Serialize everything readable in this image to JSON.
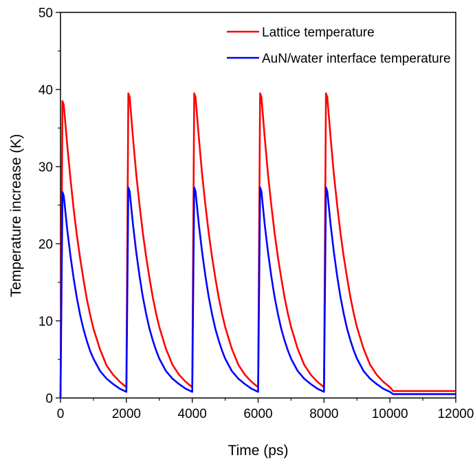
{
  "chart_data": {
    "type": "line",
    "xlabel": "Time (ps)",
    "ylabel": "Temperature increase (K)",
    "xlim": [
      0,
      12000
    ],
    "ylim": [
      0,
      50
    ],
    "xticks": [
      0,
      2000,
      4000,
      6000,
      8000,
      10000,
      12000
    ],
    "xtick_labels": [
      "0",
      "2000",
      "4000",
      "6000",
      "8000",
      "10000",
      "12000"
    ],
    "yticks": [
      0,
      10,
      20,
      30,
      40,
      50
    ],
    "ytick_labels": [
      "0",
      "10",
      "20",
      "30",
      "40",
      "50"
    ],
    "grid": false,
    "legend_position": "top-right",
    "series": [
      {
        "name": "Lattice temperature",
        "color": "#ff0000",
        "x": [
          0,
          60,
          100,
          200,
          300,
          400,
          500,
          600,
          700,
          800,
          900,
          1000,
          1200,
          1400,
          1600,
          1800,
          2000,
          2060,
          2100,
          2200,
          2300,
          2400,
          2500,
          2600,
          2700,
          2800,
          2900,
          3000,
          3200,
          3400,
          3600,
          3800,
          4000,
          4060,
          4100,
          4200,
          4300,
          4400,
          4500,
          4600,
          4700,
          4800,
          4900,
          5000,
          5200,
          5400,
          5600,
          5800,
          6000,
          6060,
          6100,
          6200,
          6300,
          6400,
          6500,
          6600,
          6700,
          6800,
          6900,
          7000,
          7200,
          7400,
          7600,
          7800,
          8000,
          8060,
          8100,
          8200,
          8300,
          8400,
          8500,
          8600,
          8700,
          8800,
          8900,
          9000,
          9200,
          9400,
          9600,
          9800,
          10000,
          10100,
          12000
        ],
        "y": [
          0,
          38.5,
          38.0,
          33.0,
          28.5,
          24.5,
          21.0,
          18.0,
          15.3,
          12.8,
          10.8,
          9.0,
          6.3,
          4.2,
          3.0,
          2.1,
          1.4,
          39.5,
          39.0,
          33.8,
          29.0,
          25.0,
          21.4,
          18.3,
          15.6,
          13.1,
          11.0,
          9.2,
          6.4,
          4.3,
          3.0,
          2.1,
          1.4,
          39.5,
          39.0,
          33.8,
          29.0,
          25.0,
          21.4,
          18.3,
          15.6,
          13.1,
          11.0,
          9.2,
          6.4,
          4.3,
          3.0,
          2.1,
          1.4,
          39.5,
          39.0,
          33.8,
          29.0,
          25.0,
          21.4,
          18.3,
          15.6,
          13.1,
          11.0,
          9.2,
          6.4,
          4.3,
          3.0,
          2.1,
          1.4,
          39.5,
          39.0,
          33.8,
          29.0,
          25.0,
          21.4,
          18.3,
          15.6,
          13.1,
          11.0,
          9.2,
          6.4,
          4.3,
          3.0,
          2.1,
          1.4,
          0.9,
          0.9
        ]
      },
      {
        "name": "AuN/water interface temperature",
        "color": "#0000ff",
        "x": [
          0,
          60,
          100,
          200,
          300,
          400,
          500,
          600,
          700,
          800,
          900,
          1000,
          1200,
          1400,
          1600,
          1800,
          2000,
          2060,
          2100,
          2200,
          2300,
          2400,
          2500,
          2600,
          2700,
          2800,
          2900,
          3000,
          3200,
          3400,
          3600,
          3800,
          4000,
          4060,
          4100,
          4200,
          4300,
          4400,
          4500,
          4600,
          4700,
          4800,
          4900,
          5000,
          5200,
          5400,
          5600,
          5800,
          6000,
          6060,
          6100,
          6200,
          6300,
          6400,
          6500,
          6600,
          6700,
          6800,
          6900,
          7000,
          7200,
          7400,
          7600,
          7800,
          8000,
          8060,
          8100,
          8200,
          8300,
          8400,
          8500,
          8600,
          8700,
          8800,
          8900,
          9000,
          9200,
          9400,
          9600,
          9800,
          10000,
          10100,
          12000
        ],
        "y": [
          0,
          26.7,
          26.2,
          22.0,
          18.5,
          15.5,
          12.9,
          10.7,
          8.9,
          7.4,
          6.1,
          5.1,
          3.5,
          2.5,
          1.8,
          1.2,
          0.8,
          27.3,
          26.8,
          22.5,
          18.9,
          15.8,
          13.1,
          10.9,
          9.0,
          7.5,
          6.2,
          5.1,
          3.5,
          2.5,
          1.8,
          1.2,
          0.8,
          27.3,
          26.8,
          22.5,
          18.9,
          15.8,
          13.1,
          10.9,
          9.0,
          7.5,
          6.2,
          5.1,
          3.5,
          2.5,
          1.8,
          1.2,
          0.8,
          27.3,
          26.8,
          22.5,
          18.9,
          15.8,
          13.1,
          10.9,
          9.0,
          7.5,
          6.2,
          5.1,
          3.5,
          2.5,
          1.8,
          1.2,
          0.8,
          27.3,
          26.8,
          22.5,
          18.9,
          15.8,
          13.1,
          10.9,
          9.0,
          7.5,
          6.2,
          5.1,
          3.5,
          2.5,
          1.8,
          1.2,
          0.8,
          0.5,
          0.5
        ]
      }
    ]
  }
}
